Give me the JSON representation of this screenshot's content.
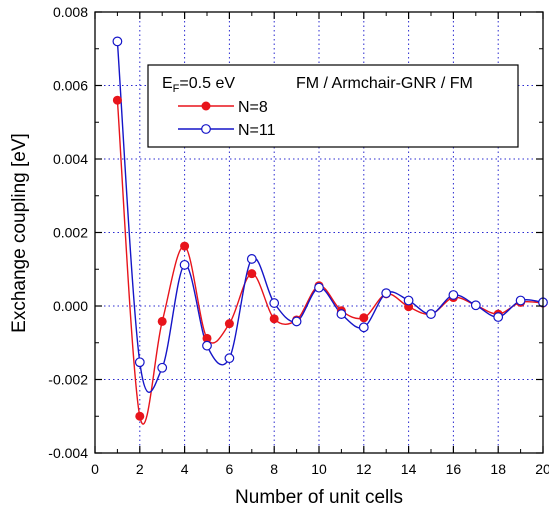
{
  "chart_data": {
    "type": "line",
    "title": "",
    "xlabel": "Number of unit cells",
    "ylabel": "Exchange coupling [eV]",
    "xlim": [
      0,
      20
    ],
    "ylim": [
      -0.004,
      0.008
    ],
    "xticks": [
      "0",
      "2",
      "4",
      "6",
      "8",
      "10",
      "12",
      "14",
      "16",
      "18",
      "20"
    ],
    "yticks": [
      "-0.004",
      "-0.002",
      "0.000",
      "0.002",
      "0.004",
      "0.006",
      "0.008"
    ],
    "grid": true,
    "legend_position": "top-right",
    "legend_note_prefix": "E",
    "legend_note_sub": "F",
    "legend_note_suffix": "=0.5 eV",
    "legend_title": "FM / Armchair-GNR / FM",
    "series": [
      {
        "name": "N=8",
        "color": "#e8141b",
        "marker": "filled-circle",
        "x": [
          1,
          2,
          3,
          4,
          5,
          6,
          7,
          8,
          9,
          10,
          11,
          12,
          13,
          14,
          15,
          16,
          17,
          18,
          19,
          20
        ],
        "y": [
          0.0056,
          -0.003,
          -0.00042,
          0.00163,
          -0.00088,
          -0.00048,
          0.00088,
          -0.00035,
          -0.00038,
          0.00055,
          -0.00013,
          -0.00032,
          0.00033,
          -2e-05,
          -0.00022,
          0.00023,
          2e-05,
          -0.00022,
          0.0001,
          8e-05
        ]
      },
      {
        "name": "N=11",
        "color": "#1515c8",
        "marker": "open-circle",
        "x": [
          1,
          2,
          3,
          4,
          5,
          6,
          7,
          8,
          9,
          10,
          11,
          12,
          13,
          14,
          15,
          16,
          17,
          18,
          19,
          20
        ],
        "y": [
          0.0072,
          -0.00153,
          -0.00168,
          0.00112,
          -0.00108,
          -0.00142,
          0.00128,
          8e-05,
          -0.00042,
          0.0005,
          -0.00022,
          -0.00058,
          0.00035,
          0.00015,
          -0.00022,
          0.0003,
          2e-05,
          -0.0003,
          0.00015,
          0.0001
        ]
      }
    ]
  }
}
